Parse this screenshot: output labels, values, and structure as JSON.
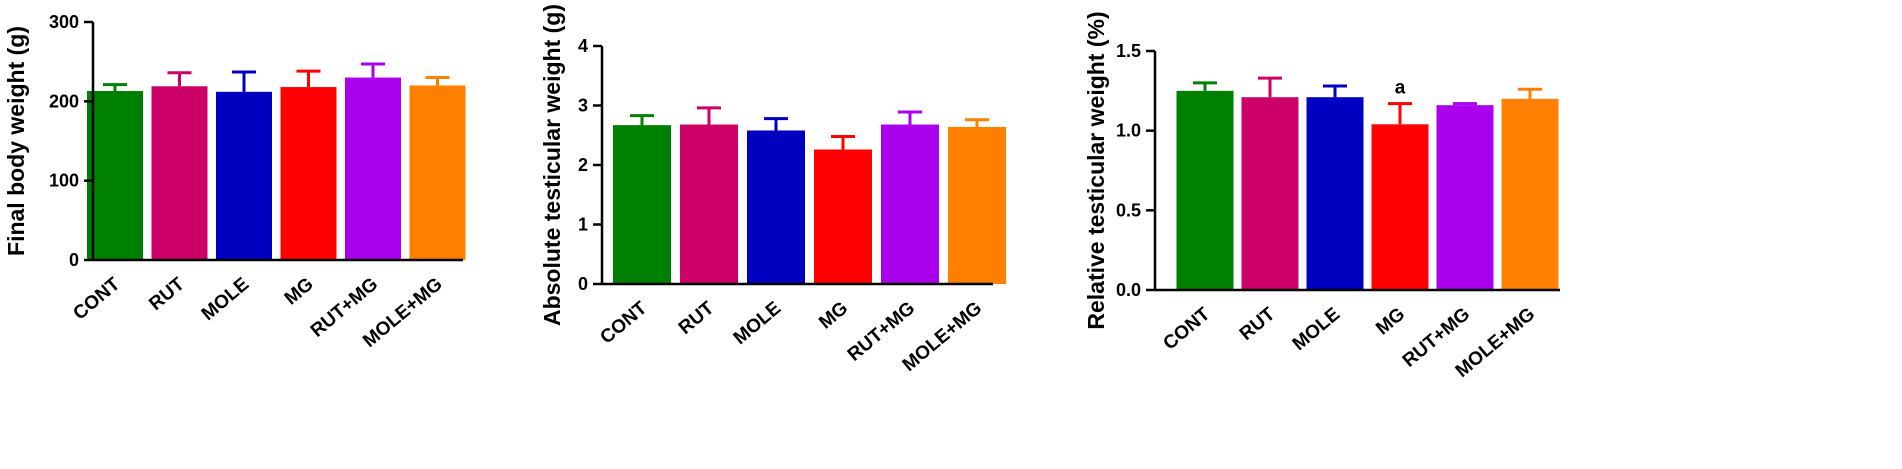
{
  "chart_data": [
    {
      "type": "bar",
      "title": "",
      "xlabel": "",
      "ylabel": "Final body weight (g)",
      "categories": [
        "CONT",
        "RUT",
        "MOLE",
        "MG",
        "RUT+MG",
        "MOLE+MG"
      ],
      "values": [
        213,
        219,
        212,
        218,
        230,
        220
      ],
      "errors": [
        8,
        17,
        25,
        20,
        17,
        10
      ],
      "colors": [
        "#008000",
        "#cc0066",
        "#0000c0",
        "#ff0000",
        "#aa00ee",
        "#ff8000"
      ],
      "ylim": [
        0,
        300
      ],
      "yticks": [
        "0",
        "100",
        "200",
        "300"
      ],
      "yticks_values": [
        0,
        100,
        200,
        300
      ],
      "annotations": [
        "",
        "",
        "",
        "",
        "",
        ""
      ],
      "grid": false,
      "legend": "none"
    },
    {
      "type": "bar",
      "title": "",
      "xlabel": "",
      "ylabel": "Absolute testicular weight (g)",
      "categories": [
        "CONT",
        "RUT",
        "MOLE",
        "MG",
        "RUT+MG",
        "MOLE+MG"
      ],
      "values": [
        2.67,
        2.68,
        2.58,
        2.26,
        2.68,
        2.64
      ],
      "errors": [
        0.16,
        0.28,
        0.2,
        0.22,
        0.21,
        0.12
      ],
      "colors": [
        "#008000",
        "#cc0066",
        "#0000c0",
        "#ff0000",
        "#aa00ee",
        "#ff8000"
      ],
      "ylim": [
        0,
        4
      ],
      "yticks": [
        "0",
        "1",
        "2",
        "3",
        "4"
      ],
      "yticks_values": [
        0,
        1,
        2,
        3,
        4
      ],
      "annotations": [
        "",
        "",
        "",
        "",
        "",
        ""
      ],
      "grid": false,
      "legend": "none"
    },
    {
      "type": "bar",
      "title": "",
      "xlabel": "",
      "ylabel": "Relative testicular weight (%)",
      "categories": [
        "CONT",
        "RUT",
        "MOLE",
        "MG",
        "RUT+MG",
        "MOLE+MG"
      ],
      "values": [
        1.25,
        1.21,
        1.21,
        1.04,
        1.16,
        1.2
      ],
      "errors": [
        0.05,
        0.12,
        0.07,
        0.13,
        0.01,
        0.06
      ],
      "colors": [
        "#008000",
        "#cc0066",
        "#0000c0",
        "#ff0000",
        "#aa00ee",
        "#ff8000"
      ],
      "ylim": [
        0,
        1.5
      ],
      "yticks": [
        "0.0",
        "0.5",
        "1.0",
        "1.5"
      ],
      "yticks_values": [
        0,
        0.5,
        1.0,
        1.5
      ],
      "annotations": [
        "",
        "",
        "",
        "a",
        "",
        ""
      ],
      "grid": false,
      "legend": "none"
    }
  ]
}
